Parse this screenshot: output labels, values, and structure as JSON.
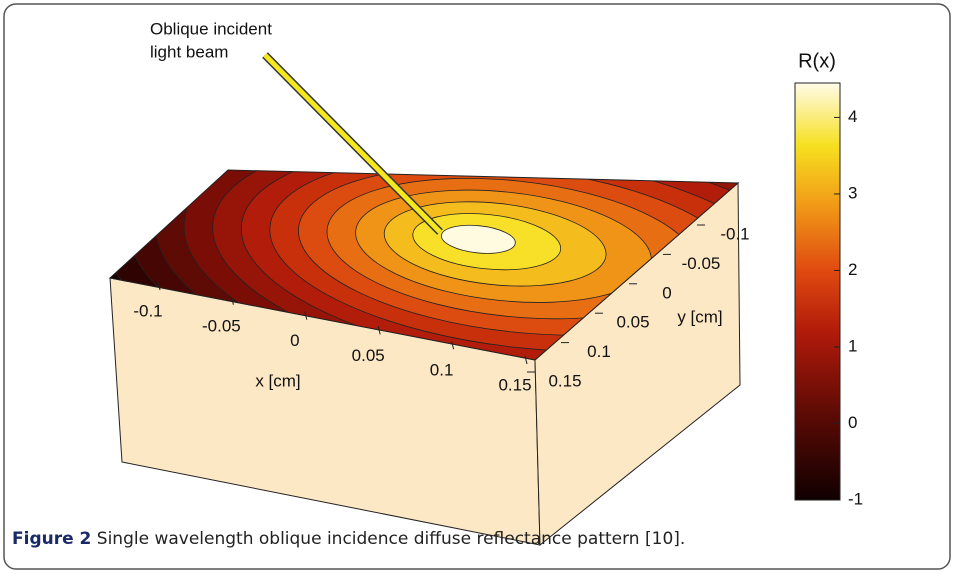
{
  "figure": {
    "annotation": [
      "Oblique incident",
      "light beam"
    ],
    "colorbar": {
      "label": "R(x)",
      "lim": [
        -1,
        4.45
      ],
      "ticks": [
        4,
        3,
        2,
        1,
        0,
        -1
      ]
    },
    "x_axis": {
      "label": "x [cm]",
      "ticks": [
        -0.1,
        -0.05,
        0,
        0.05,
        0.1,
        0.15
      ]
    },
    "y_axis": {
      "label": "y [cm]",
      "ticks": [
        -0.1,
        -0.05,
        0,
        0.05,
        0.1,
        0.15
      ]
    }
  },
  "caption": {
    "label": "Figure 2",
    "text": "Single wavelength oblique incidence diffuse reflectance pattern [10]."
  }
}
